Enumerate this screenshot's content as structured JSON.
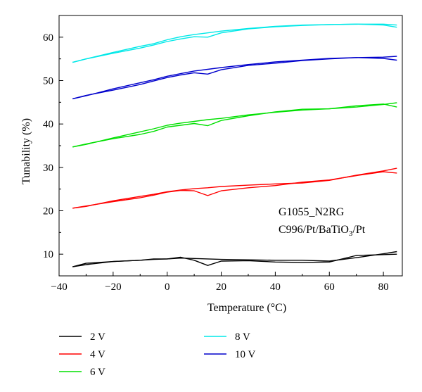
{
  "chart_data": {
    "type": "line",
    "xlabel": "Temperature (°C)",
    "ylabel": "Tunability (%)",
    "xlim": [
      -40,
      87
    ],
    "ylim": [
      5,
      65
    ],
    "xticks": [
      -40,
      -20,
      0,
      20,
      40,
      60,
      80
    ],
    "yticks": [
      10,
      20,
      30,
      40,
      50,
      60
    ],
    "grid": false,
    "legend_position": "bottom",
    "annotation": {
      "line1": "G1055_N2RG",
      "line2_prefix": "C996/Pt/BaTiO",
      "line2_sub": "3",
      "line2_suffix": "/Pt"
    },
    "series": [
      {
        "name": "2 V",
        "color": "#000000",
        "x": [
          -35,
          -30,
          -20,
          -10,
          -5,
          0,
          5,
          10,
          15,
          20,
          30,
          40,
          50,
          60,
          70,
          80,
          85
        ],
        "values": [
          7.1,
          7.6,
          8.3,
          8.6,
          8.8,
          8.9,
          9.1,
          9.0,
          8.9,
          8.8,
          8.7,
          8.6,
          8.6,
          8.4,
          9.2,
          10.1,
          10.6
        ],
        "values_return": [
          7.1,
          7.9,
          8.3,
          8.6,
          8.9,
          8.9,
          9.3,
          8.6,
          7.4,
          8.4,
          8.5,
          8.2,
          8.1,
          8.2,
          9.7,
          9.9,
          10.0
        ]
      },
      {
        "name": "4 V",
        "color": "#ff0000",
        "x": [
          -35,
          -30,
          -20,
          -10,
          -5,
          0,
          5,
          10,
          15,
          20,
          30,
          40,
          50,
          60,
          70,
          80,
          85
        ],
        "values": [
          20.6,
          21.0,
          22.3,
          23.3,
          23.8,
          24.4,
          24.8,
          25.1,
          25.3,
          25.6,
          25.9,
          26.2,
          26.4,
          27.0,
          28.2,
          29.2,
          29.8
        ],
        "values_return": [
          20.6,
          21.1,
          22.1,
          23.0,
          23.6,
          24.3,
          24.7,
          24.6,
          23.5,
          24.6,
          25.3,
          25.8,
          26.6,
          27.1,
          28.1,
          29.0,
          28.7
        ]
      },
      {
        "name": "6 V",
        "color": "#00e000",
        "x": [
          -35,
          -30,
          -20,
          -10,
          -5,
          0,
          5,
          10,
          15,
          20,
          30,
          40,
          50,
          60,
          70,
          80,
          85
        ],
        "values": [
          34.7,
          35.3,
          36.8,
          38.2,
          38.9,
          39.7,
          40.2,
          40.6,
          41.0,
          41.3,
          42.1,
          42.7,
          43.2,
          43.5,
          43.9,
          44.5,
          44.9
        ],
        "values_return": [
          34.7,
          35.4,
          36.6,
          37.6,
          38.3,
          39.3,
          39.7,
          40.1,
          39.6,
          40.8,
          41.9,
          42.8,
          43.4,
          43.5,
          44.2,
          44.6,
          43.9
        ]
      },
      {
        "name": "8 V",
        "color": "#00e8e8",
        "x": [
          -35,
          -30,
          -20,
          -10,
          -5,
          0,
          5,
          10,
          15,
          20,
          30,
          40,
          50,
          60,
          70,
          80,
          85
        ],
        "values": [
          54.2,
          55.0,
          56.5,
          57.9,
          58.5,
          59.4,
          60.1,
          60.6,
          61.0,
          61.4,
          62.0,
          62.5,
          62.8,
          62.9,
          63.0,
          63.0,
          62.8
        ],
        "values_return": [
          54.2,
          55.0,
          56.3,
          57.5,
          58.2,
          59.0,
          59.6,
          60.1,
          60.0,
          61.0,
          61.9,
          62.4,
          62.7,
          62.9,
          63.0,
          62.8,
          62.3
        ]
      },
      {
        "name": "10 V",
        "color": "#0000cc",
        "x": [
          -35,
          -30,
          -20,
          -10,
          -5,
          0,
          5,
          10,
          15,
          20,
          30,
          40,
          50,
          60,
          70,
          80,
          85
        ],
        "values": [
          45.8,
          46.5,
          48.1,
          49.5,
          50.2,
          51.0,
          51.6,
          52.2,
          52.6,
          53.0,
          53.7,
          54.3,
          54.7,
          55.1,
          55.3,
          55.4,
          55.6
        ],
        "values_return": [
          45.8,
          46.6,
          47.8,
          49.1,
          49.9,
          50.7,
          51.3,
          51.8,
          51.5,
          52.5,
          53.5,
          54.0,
          54.6,
          55.0,
          55.3,
          55.1,
          54.7
        ]
      }
    ]
  }
}
